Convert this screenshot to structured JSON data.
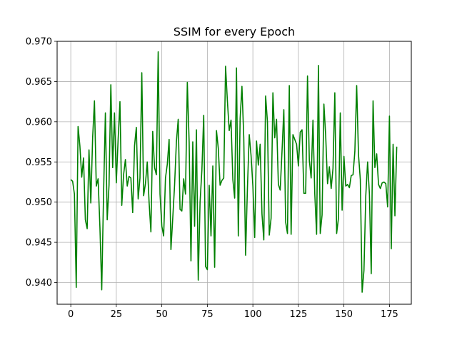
{
  "chart_data": {
    "type": "line",
    "title": "SSIM for every Epoch",
    "xlabel": "",
    "ylabel": "",
    "xlim": [
      -7.5,
      187
    ],
    "ylim": [
      0.9373,
      0.97
    ],
    "xticks": [
      0,
      25,
      50,
      75,
      100,
      125,
      150,
      175
    ],
    "xtick_labels": [
      "0",
      "25",
      "50",
      "75",
      "100",
      "125",
      "150",
      "175"
    ],
    "yticks": [
      0.94,
      0.945,
      0.95,
      0.955,
      0.96,
      0.965,
      0.97
    ],
    "ytick_labels": [
      "0.940",
      "0.945",
      "0.950",
      "0.955",
      "0.960",
      "0.965",
      "0.970"
    ],
    "grid": true,
    "series": [
      {
        "color": "#008000",
        "x_start": 0,
        "x_step": 1,
        "values": [
          0.9528,
          0.9526,
          0.951,
          0.9394,
          0.9594,
          0.957,
          0.9531,
          0.9555,
          0.9478,
          0.9467,
          0.9565,
          0.9499,
          0.958,
          0.9626,
          0.952,
          0.9529,
          0.9469,
          0.9391,
          0.951,
          0.9611,
          0.9478,
          0.9521,
          0.9646,
          0.9543,
          0.9611,
          0.9524,
          0.9578,
          0.9625,
          0.9496,
          0.9534,
          0.9553,
          0.952,
          0.9532,
          0.953,
          0.9487,
          0.957,
          0.9593,
          0.9504,
          0.953,
          0.9661,
          0.9508,
          0.9523,
          0.955,
          0.95,
          0.9463,
          0.9588,
          0.9543,
          0.9534,
          0.9687,
          0.951,
          0.947,
          0.9458,
          0.953,
          0.9547,
          0.9578,
          0.9441,
          0.948,
          0.9521,
          0.9575,
          0.9603,
          0.9491,
          0.9489,
          0.9529,
          0.951,
          0.9649,
          0.9575,
          0.9427,
          0.9575,
          0.947,
          0.959,
          0.9403,
          0.95,
          0.954,
          0.9608,
          0.942,
          0.9416,
          0.9521,
          0.9458,
          0.9545,
          0.9419,
          0.9589,
          0.9567,
          0.9521,
          0.9527,
          0.953,
          0.9669,
          0.9626,
          0.9589,
          0.9602,
          0.9528,
          0.9505,
          0.9667,
          0.9458,
          0.9604,
          0.9644,
          0.958,
          0.9434,
          0.9517,
          0.9584,
          0.9558,
          0.952,
          0.9456,
          0.9576,
          0.9546,
          0.9572,
          0.9485,
          0.9453,
          0.9632,
          0.96,
          0.9459,
          0.948,
          0.9636,
          0.958,
          0.9603,
          0.9522,
          0.9515,
          0.9563,
          0.9615,
          0.9475,
          0.9461,
          0.9645,
          0.946,
          0.9584,
          0.9578,
          0.9572,
          0.9545,
          0.9587,
          0.959,
          0.9511,
          0.9511,
          0.9657,
          0.9552,
          0.953,
          0.9602,
          0.951,
          0.946,
          0.967,
          0.9461,
          0.9484,
          0.9622,
          0.9582,
          0.9523,
          0.9544,
          0.9517,
          0.9542,
          0.9636,
          0.9461,
          0.948,
          0.9611,
          0.949,
          0.9557,
          0.952,
          0.9522,
          0.9518,
          0.9533,
          0.9534,
          0.9563,
          0.9645,
          0.9559,
          0.9528,
          0.9388,
          0.9415,
          0.9508,
          0.955,
          0.951,
          0.9411,
          0.9626,
          0.9543,
          0.956,
          0.9522,
          0.9517,
          0.9524,
          0.9525,
          0.9523,
          0.9494,
          0.9607,
          0.9442,
          0.9572,
          0.9483,
          0.9569
        ]
      }
    ]
  }
}
